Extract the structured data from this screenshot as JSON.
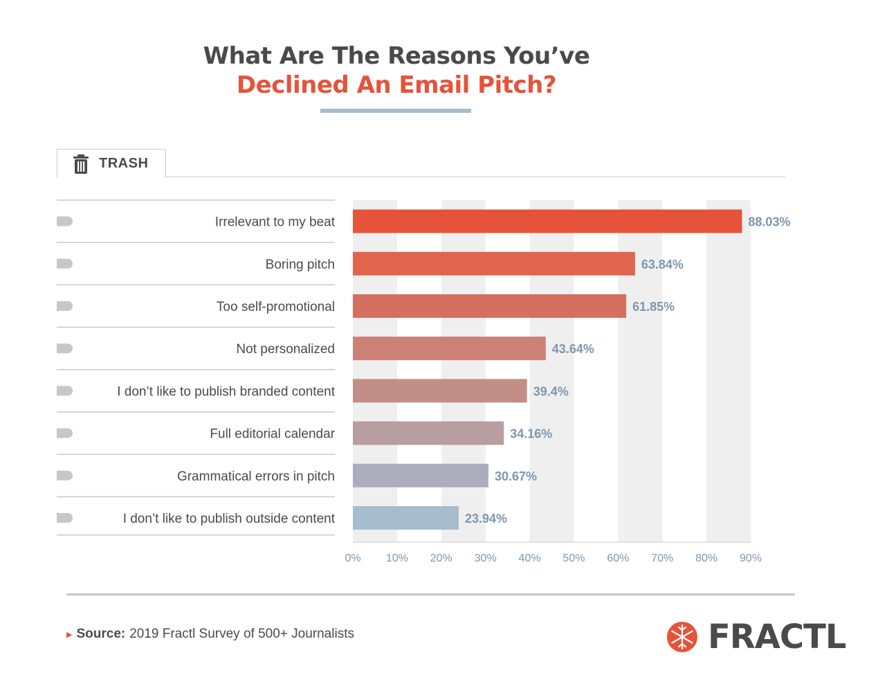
{
  "title": {
    "line1": "What Are The Reasons You’ve",
    "line2": "Declined An Email Pitch?"
  },
  "tab": {
    "label": "TRASH",
    "icon": "trash-icon"
  },
  "colors": {
    "title_dark": "#4a4a4a",
    "title_accent": "#e5533a",
    "value_label": "#7d97ae",
    "band": "#efefef"
  },
  "chart_data": {
    "type": "bar",
    "orientation": "horizontal",
    "categories": [
      "Irrelevant to my beat",
      "Boring pitch",
      "Too self-promotional",
      "Not personalized",
      "I don’t like to publish branded content",
      "Full editorial calendar",
      "Grammatical errors in pitch",
      "I don’t like to publish outside content"
    ],
    "values": [
      88.03,
      63.84,
      61.85,
      43.64,
      39.4,
      34.16,
      30.67,
      23.94
    ],
    "value_labels": [
      "88.03%",
      "63.84%",
      "61.85%",
      "43.64%",
      "39.4%",
      "34.16%",
      "30.67%",
      "23.94%"
    ],
    "bar_colors": [
      "#e5533a",
      "#e0654f",
      "#d56f5f",
      "#cc8176",
      "#c18e88",
      "#b99ea1",
      "#adacbc",
      "#a7bccd"
    ],
    "xlim": [
      0,
      90
    ],
    "xticks": [
      "0%",
      "10%",
      "20%",
      "30%",
      "40%",
      "50%",
      "60%",
      "70%",
      "80%",
      "90%"
    ],
    "grid": "alternating vertical bands"
  },
  "footer": {
    "source_label": "Source:",
    "source_text": "2019 Fractl Survey of 500+ Journalists",
    "brand": "FRACTL"
  }
}
